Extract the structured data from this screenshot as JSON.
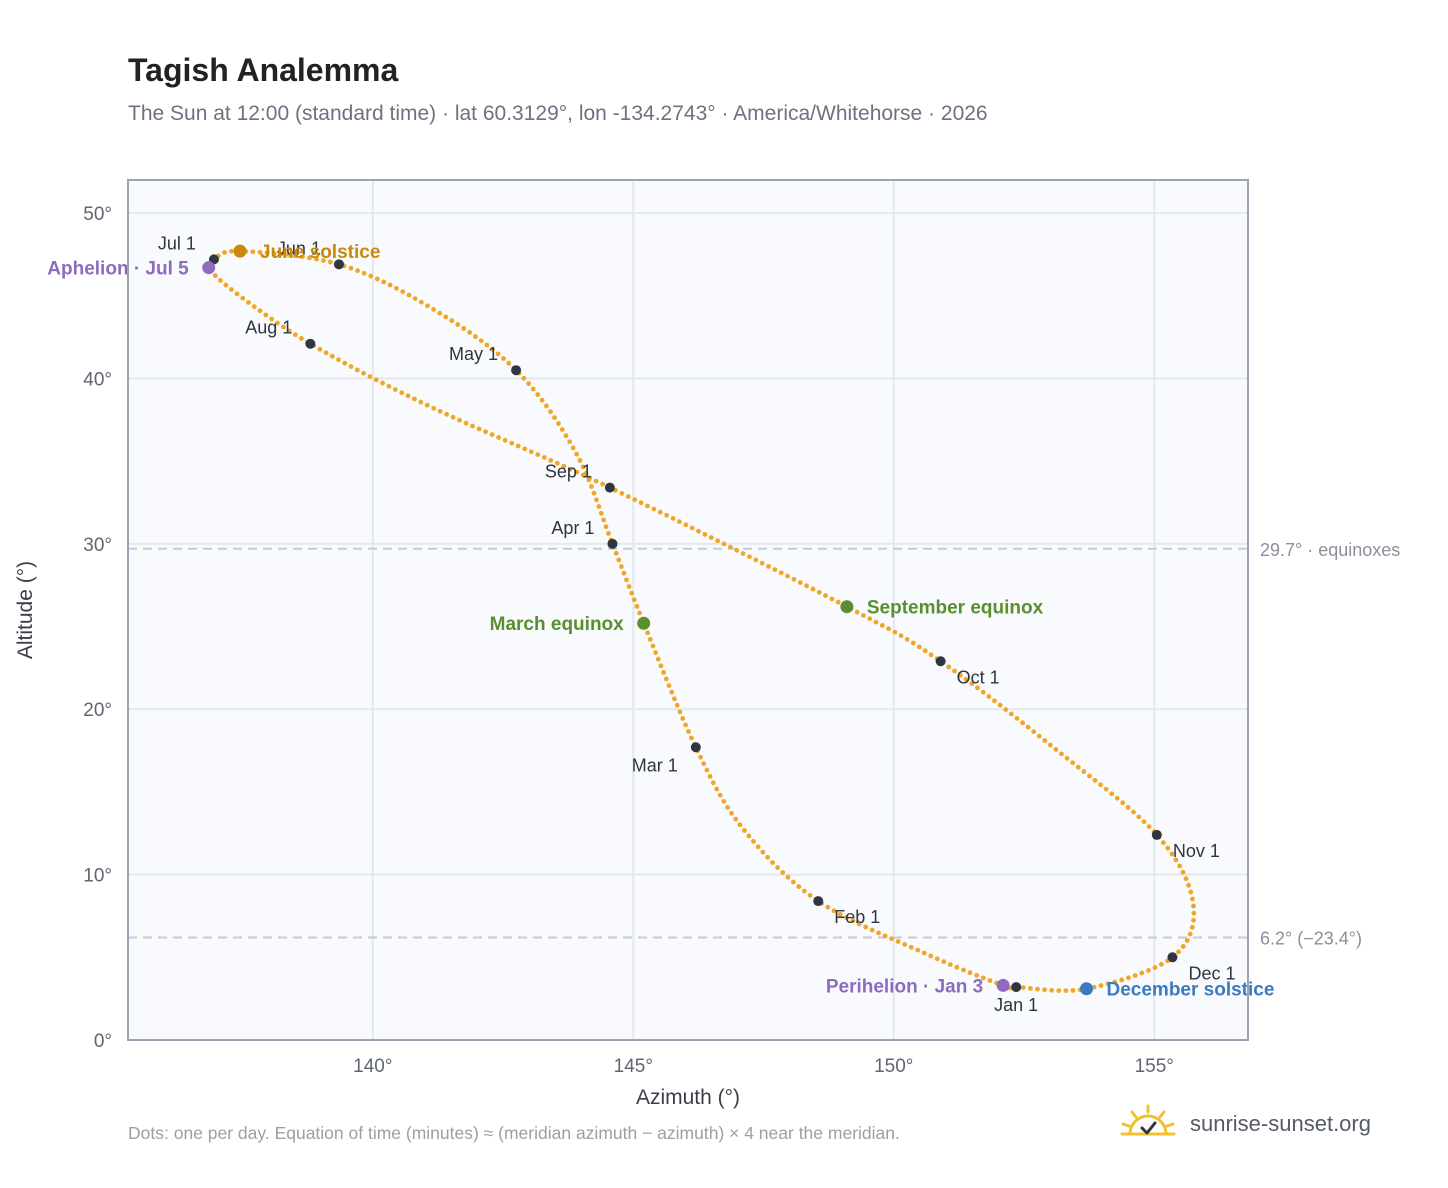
{
  "header": {
    "title": "Tagish Analemma",
    "subtitle": "The Sun at 12:00 (standard time) · lat 60.3129°, lon -134.2743° · America/Whitehorse · 2026"
  },
  "footer": {
    "note": "Dots: one per day. Equation of time (minutes) ≈ (meridian azimuth − azimuth) × 4 near the meridian.",
    "brand": "sunrise-sunset.org"
  },
  "colors": {
    "path": "#f0a626",
    "month_marker": "#2f3640",
    "solstice_june": "#c8890c",
    "equinox": "#5a8f2f",
    "solstice_december": "#3a7bbf",
    "apsis": "#8e6bbf",
    "plot_bg": "#f8fafd",
    "grid": "#e3e8ef",
    "frame": "#9aa5b4",
    "ref_line": "#c5cbd3",
    "ref_text": "#8a9099"
  },
  "chart_data": {
    "type": "scatter",
    "xlabel": "Azimuth (°)",
    "ylabel": "Altitude (°)",
    "xlim": [
      135.3,
      156.8
    ],
    "ylim": [
      0,
      52
    ],
    "xticks": [
      {
        "value": 140,
        "label": "140°"
      },
      {
        "value": 145,
        "label": "145°"
      },
      {
        "value": 150,
        "label": "150°"
      },
      {
        "value": 155,
        "label": "155°"
      }
    ],
    "yticks": [
      {
        "value": 0,
        "label": "0°"
      },
      {
        "value": 10,
        "label": "10°"
      },
      {
        "value": 20,
        "label": "20°"
      },
      {
        "value": 30,
        "label": "30°"
      },
      {
        "value": 40,
        "label": "40°"
      },
      {
        "value": 50,
        "label": "50°"
      }
    ],
    "grid": true,
    "reference_lines": [
      {
        "y": 29.7,
        "label": "29.7° · equinoxes"
      },
      {
        "y": 6.2,
        "label": "6.2° (−23.4°)"
      }
    ],
    "path_points": [
      {
        "date": "Jan 1",
        "az": 152.35,
        "alt": 3.2
      },
      {
        "date": "Jan 3",
        "az": 152.1,
        "alt": 3.3
      },
      {
        "date": "Jan 15",
        "az": 150.7,
        "alt": 5.1
      },
      {
        "date": "Feb 1",
        "az": 148.55,
        "alt": 8.4
      },
      {
        "date": "Feb 15",
        "az": 147.1,
        "alt": 12.8
      },
      {
        "date": "Mar 1",
        "az": 146.2,
        "alt": 17.7
      },
      {
        "date": "Mar 20",
        "az": 145.2,
        "alt": 25.2
      },
      {
        "date": "Apr 1",
        "az": 144.6,
        "alt": 30.0
      },
      {
        "date": "Apr 15",
        "az": 143.9,
        "alt": 35.5
      },
      {
        "date": "May 1",
        "az": 142.75,
        "alt": 40.5
      },
      {
        "date": "May 15",
        "az": 141.1,
        "alt": 44.3
      },
      {
        "date": "Jun 1",
        "az": 139.35,
        "alt": 46.9
      },
      {
        "date": "Jun 21",
        "az": 137.45,
        "alt": 47.7
      },
      {
        "date": "Jul 1",
        "az": 136.95,
        "alt": 47.2
      },
      {
        "date": "Jul 5",
        "az": 136.85,
        "alt": 46.7
      },
      {
        "date": "Jul 15",
        "az": 137.4,
        "alt": 45.1
      },
      {
        "date": "Aug 1",
        "az": 138.8,
        "alt": 42.1
      },
      {
        "date": "Aug 15",
        "az": 141.1,
        "alt": 38.3
      },
      {
        "date": "Sep 1",
        "az": 144.55,
        "alt": 33.4
      },
      {
        "date": "Sep 22",
        "az": 149.1,
        "alt": 26.2
      },
      {
        "date": "Oct 1",
        "az": 150.9,
        "alt": 22.9
      },
      {
        "date": "Oct 15",
        "az": 153.1,
        "alt": 17.6
      },
      {
        "date": "Nov 1",
        "az": 155.05,
        "alt": 12.4
      },
      {
        "date": "Nov 15",
        "az": 155.75,
        "alt": 8.2
      },
      {
        "date": "Dec 1",
        "az": 155.35,
        "alt": 5.0
      },
      {
        "date": "Dec 21",
        "az": 153.7,
        "alt": 3.1
      },
      {
        "date": "Jan 1",
        "az": 152.35,
        "alt": 3.2
      }
    ],
    "month_markers": [
      {
        "label": "Jan 1",
        "az": 152.35,
        "alt": 3.2,
        "anchor": "below"
      },
      {
        "label": "Feb 1",
        "az": 148.55,
        "alt": 8.4,
        "anchor": "below-right"
      },
      {
        "label": "Mar 1",
        "az": 146.2,
        "alt": 17.7,
        "anchor": "below-left"
      },
      {
        "label": "Apr 1",
        "az": 144.6,
        "alt": 30.0,
        "anchor": "above-left"
      },
      {
        "label": "May 1",
        "az": 142.75,
        "alt": 40.5,
        "anchor": "above-left"
      },
      {
        "label": "Jun 1",
        "az": 139.35,
        "alt": 46.9,
        "anchor": "above-left"
      },
      {
        "label": "Jul 1",
        "az": 136.95,
        "alt": 47.2,
        "anchor": "above-left"
      },
      {
        "label": "Aug 1",
        "az": 138.8,
        "alt": 42.1,
        "anchor": "above-left"
      },
      {
        "label": "Sep 1",
        "az": 144.55,
        "alt": 33.4,
        "anchor": "above-left"
      },
      {
        "label": "Oct 1",
        "az": 150.9,
        "alt": 22.9,
        "anchor": "below-right"
      },
      {
        "label": "Nov 1",
        "az": 155.05,
        "alt": 12.4,
        "anchor": "below-right"
      },
      {
        "label": "Dec 1",
        "az": 155.35,
        "alt": 5.0,
        "anchor": "below-right"
      }
    ],
    "events": [
      {
        "label": "June solstice",
        "az": 137.45,
        "alt": 47.7,
        "color": "solstice_june",
        "side": "right"
      },
      {
        "label": "March equinox",
        "az": 145.2,
        "alt": 25.2,
        "color": "equinox",
        "side": "left"
      },
      {
        "label": "September equinox",
        "az": 149.1,
        "alt": 26.2,
        "color": "equinox",
        "side": "right"
      },
      {
        "label": "December solstice",
        "az": 153.7,
        "alt": 3.1,
        "color": "solstice_december",
        "side": "right"
      },
      {
        "label": "Aphelion · Jul 5",
        "az": 136.85,
        "alt": 46.7,
        "color": "apsis",
        "side": "left"
      },
      {
        "label": "Perihelion · Jan 3",
        "az": 152.1,
        "alt": 3.3,
        "color": "apsis",
        "side": "left"
      }
    ]
  }
}
